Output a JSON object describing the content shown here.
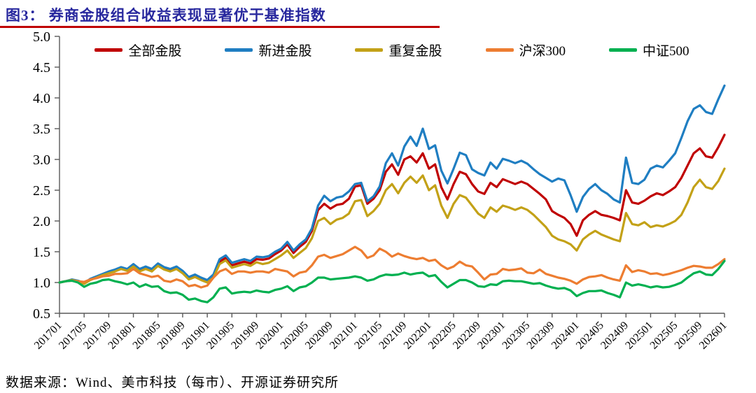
{
  "title": "图3： 券商金股组合收益表现显著优于基准指数",
  "source": "数据来源：Wind、美市科技（每市）、开源证券研究所",
  "styles": {
    "title_color": "#28289E",
    "title_rule_color": "#C00000",
    "axis_color": "#595959",
    "text_color": "#000000"
  },
  "chart_data": {
    "type": "line",
    "title": "券商金股组合收益表现显著优于基准指数",
    "x_start": "201701",
    "x_interval_months": 1,
    "x_tick_labels": [
      "201701",
      "201705",
      "201709",
      "201801",
      "201805",
      "201809",
      "201901",
      "201905",
      "201909",
      "202001",
      "202005",
      "202009",
      "202101",
      "202105",
      "202109",
      "202201",
      "202205",
      "202209",
      "202301",
      "202305",
      "202309",
      "202401",
      "202405",
      "202409",
      "202501",
      "202505",
      "202509",
      "202601"
    ],
    "x_ticks_every_n_points": 4,
    "ylim": [
      0.5,
      5.0
    ],
    "y_ticks": [
      0.5,
      1.0,
      1.5,
      2.0,
      2.5,
      3.0,
      3.5,
      4.0,
      4.5,
      5.0
    ],
    "grid": false,
    "legend_position": "top",
    "series": [
      {
        "name": "全部金股",
        "color": "#C00000",
        "values": [
          1.0,
          1.02,
          1.04,
          1.02,
          0.98,
          1.05,
          1.09,
          1.13,
          1.16,
          1.19,
          1.23,
          1.2,
          1.28,
          1.2,
          1.24,
          1.2,
          1.29,
          1.23,
          1.2,
          1.24,
          1.17,
          1.07,
          1.11,
          1.06,
          1.02,
          1.11,
          1.34,
          1.4,
          1.28,
          1.31,
          1.34,
          1.31,
          1.38,
          1.37,
          1.39,
          1.46,
          1.52,
          1.62,
          1.48,
          1.58,
          1.66,
          1.84,
          2.18,
          2.28,
          2.2,
          2.26,
          2.28,
          2.36,
          2.56,
          2.58,
          2.28,
          2.36,
          2.5,
          2.8,
          2.92,
          2.75,
          3.0,
          3.05,
          2.95,
          3.1,
          2.85,
          2.92,
          2.55,
          2.35,
          2.6,
          2.8,
          2.76,
          2.6,
          2.48,
          2.44,
          2.62,
          2.55,
          2.68,
          2.64,
          2.6,
          2.64,
          2.6,
          2.52,
          2.44,
          2.35,
          2.16,
          2.1,
          2.05,
          1.95,
          1.76,
          2.01,
          2.1,
          2.16,
          2.1,
          2.08,
          2.05,
          2.01,
          2.5,
          2.3,
          2.28,
          2.33,
          2.4,
          2.45,
          2.42,
          2.48,
          2.55,
          2.7,
          2.9,
          3.1,
          3.18,
          3.05,
          3.03,
          3.2,
          3.4
        ]
      },
      {
        "name": "新进金股",
        "color": "#1F7EC2",
        "values": [
          1.0,
          1.02,
          1.05,
          1.03,
          0.99,
          1.06,
          1.1,
          1.14,
          1.18,
          1.21,
          1.25,
          1.22,
          1.3,
          1.22,
          1.26,
          1.22,
          1.31,
          1.25,
          1.22,
          1.26,
          1.19,
          1.09,
          1.13,
          1.08,
          1.04,
          1.13,
          1.38,
          1.44,
          1.32,
          1.35,
          1.38,
          1.35,
          1.42,
          1.41,
          1.43,
          1.5,
          1.55,
          1.66,
          1.52,
          1.62,
          1.7,
          1.88,
          2.25,
          2.41,
          2.32,
          2.38,
          2.4,
          2.48,
          2.6,
          2.62,
          2.32,
          2.4,
          2.56,
          2.94,
          3.1,
          2.9,
          3.21,
          3.37,
          3.22,
          3.5,
          3.17,
          3.23,
          2.82,
          2.61,
          2.85,
          3.11,
          3.07,
          2.84,
          2.78,
          2.74,
          2.95,
          2.85,
          3.01,
          2.98,
          2.94,
          2.98,
          2.93,
          2.84,
          2.76,
          2.7,
          2.64,
          2.69,
          2.66,
          2.42,
          2.15,
          2.39,
          2.52,
          2.6,
          2.5,
          2.44,
          2.35,
          2.3,
          3.03,
          2.62,
          2.6,
          2.67,
          2.85,
          2.9,
          2.87,
          2.98,
          3.1,
          3.35,
          3.62,
          3.82,
          3.88,
          3.77,
          3.74,
          3.98,
          4.2
        ]
      },
      {
        "name": "重复金股",
        "color": "#C3A117",
        "values": [
          1.0,
          1.02,
          1.04,
          1.02,
          0.98,
          1.04,
          1.08,
          1.12,
          1.15,
          1.18,
          1.22,
          1.19,
          1.26,
          1.18,
          1.22,
          1.18,
          1.27,
          1.21,
          1.18,
          1.22,
          1.15,
          1.05,
          1.09,
          1.04,
          1.0,
          1.08,
          1.3,
          1.36,
          1.24,
          1.27,
          1.3,
          1.27,
          1.33,
          1.3,
          1.32,
          1.38,
          1.44,
          1.52,
          1.4,
          1.48,
          1.56,
          1.72,
          2.0,
          2.05,
          1.95,
          2.02,
          2.05,
          2.12,
          2.32,
          2.34,
          2.08,
          2.16,
          2.28,
          2.5,
          2.6,
          2.45,
          2.62,
          2.72,
          2.62,
          2.74,
          2.5,
          2.58,
          2.25,
          2.05,
          2.28,
          2.42,
          2.38,
          2.25,
          2.12,
          2.05,
          2.22,
          2.15,
          2.25,
          2.22,
          2.18,
          2.22,
          2.18,
          2.1,
          2.0,
          1.9,
          1.76,
          1.7,
          1.67,
          1.62,
          1.52,
          1.7,
          1.78,
          1.84,
          1.78,
          1.74,
          1.7,
          1.67,
          2.13,
          1.95,
          1.93,
          1.98,
          1.9,
          1.93,
          1.91,
          1.95,
          2.0,
          2.1,
          2.3,
          2.55,
          2.67,
          2.55,
          2.52,
          2.65,
          2.85
        ]
      },
      {
        "name": "沪深300",
        "color": "#ED7D31",
        "values": [
          1.0,
          1.02,
          1.03,
          1.02,
          1.01,
          1.05,
          1.07,
          1.1,
          1.11,
          1.14,
          1.14,
          1.15,
          1.22,
          1.15,
          1.12,
          1.09,
          1.11,
          1.03,
          1.01,
          1.05,
          1.02,
          0.94,
          0.96,
          0.92,
          0.95,
          1.08,
          1.18,
          1.22,
          1.14,
          1.18,
          1.18,
          1.16,
          1.18,
          1.18,
          1.16,
          1.22,
          1.2,
          1.18,
          1.1,
          1.16,
          1.18,
          1.28,
          1.42,
          1.45,
          1.4,
          1.43,
          1.46,
          1.52,
          1.58,
          1.52,
          1.4,
          1.44,
          1.55,
          1.5,
          1.42,
          1.47,
          1.43,
          1.4,
          1.38,
          1.4,
          1.35,
          1.37,
          1.28,
          1.22,
          1.26,
          1.34,
          1.28,
          1.26,
          1.16,
          1.05,
          1.13,
          1.14,
          1.22,
          1.2,
          1.21,
          1.23,
          1.16,
          1.15,
          1.21,
          1.14,
          1.11,
          1.08,
          1.06,
          1.03,
          0.98,
          1.05,
          1.09,
          1.1,
          1.12,
          1.08,
          1.05,
          1.03,
          1.28,
          1.17,
          1.2,
          1.18,
          1.14,
          1.15,
          1.12,
          1.14,
          1.17,
          1.2,
          1.24,
          1.27,
          1.26,
          1.24,
          1.24,
          1.3,
          1.38
        ]
      },
      {
        "name": "中证500",
        "color": "#00B050",
        "values": [
          1.0,
          1.02,
          1.03,
          1.0,
          0.93,
          0.98,
          1.0,
          1.04,
          1.05,
          1.02,
          1.0,
          0.97,
          1.0,
          0.93,
          0.97,
          0.93,
          0.94,
          0.86,
          0.83,
          0.84,
          0.8,
          0.72,
          0.74,
          0.7,
          0.68,
          0.76,
          0.9,
          0.92,
          0.82,
          0.84,
          0.85,
          0.84,
          0.87,
          0.85,
          0.84,
          0.88,
          0.9,
          0.94,
          0.86,
          0.92,
          0.94,
          1.0,
          1.08,
          1.08,
          1.05,
          1.06,
          1.07,
          1.08,
          1.1,
          1.08,
          1.03,
          1.05,
          1.1,
          1.13,
          1.12,
          1.13,
          1.16,
          1.13,
          1.15,
          1.16,
          1.1,
          1.12,
          1.01,
          0.92,
          0.98,
          1.04,
          1.04,
          1.0,
          0.94,
          0.93,
          0.97,
          0.96,
          1.02,
          1.03,
          1.02,
          1.02,
          1.0,
          0.98,
          0.99,
          0.95,
          0.92,
          0.9,
          0.91,
          0.87,
          0.78,
          0.83,
          0.86,
          0.86,
          0.87,
          0.83,
          0.8,
          0.76,
          1.0,
          0.95,
          0.97,
          0.95,
          0.92,
          0.94,
          0.92,
          0.93,
          0.96,
          1.0,
          1.08,
          1.15,
          1.18,
          1.13,
          1.12,
          1.22,
          1.35
        ]
      }
    ]
  }
}
